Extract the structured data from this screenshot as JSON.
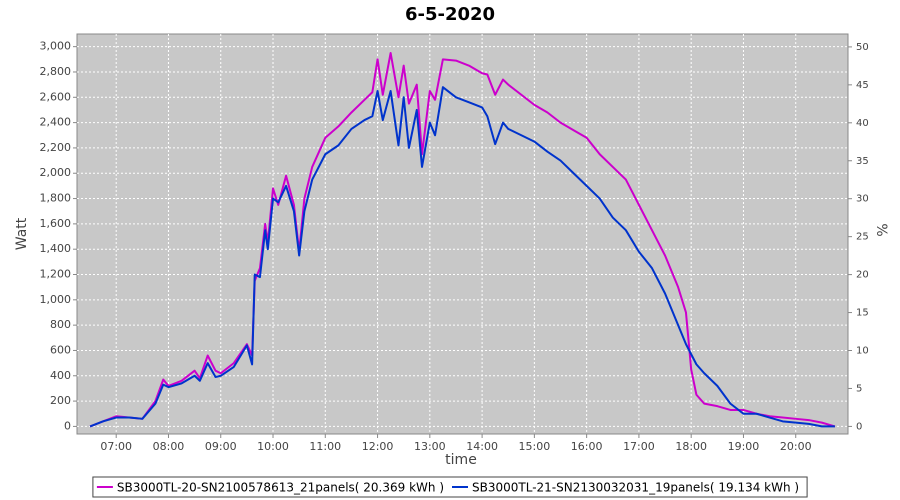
{
  "chart_data": {
    "type": "line",
    "title": "6-5-2020",
    "x_label": "time",
    "y_label": "Watt",
    "y2_label": "%",
    "x": [
      6.5,
      6.75,
      7,
      7.25,
      7.5,
      7.75,
      7.9,
      8,
      8.25,
      8.5,
      8.6,
      8.75,
      8.9,
      9,
      9.25,
      9.5,
      9.6,
      9.65,
      9.75,
      9.85,
      9.9,
      10,
      10.1,
      10.25,
      10.4,
      10.5,
      10.6,
      10.75,
      11,
      11.25,
      11.5,
      11.75,
      11.9,
      12,
      12.1,
      12.25,
      12.4,
      12.5,
      12.6,
      12.75,
      12.85,
      13,
      13.1,
      13.25,
      13.5,
      13.75,
      14,
      14.1,
      14.25,
      14.4,
      14.5,
      14.75,
      15,
      15.25,
      15.5,
      15.75,
      16,
      16.25,
      16.5,
      16.75,
      17,
      17.25,
      17.5,
      17.75,
      17.9,
      18,
      18.1,
      18.25,
      18.5,
      18.75,
      19,
      19.25,
      19.5,
      19.75,
      20,
      20.25,
      20.5,
      20.75
    ],
    "series": [
      {
        "name": "SB3000TL-20-SN2100578613_21panels( 20.369 kWh )",
        "color": "#cc00cc",
        "values": [
          0,
          40,
          80,
          70,
          60,
          200,
          370,
          320,
          360,
          440,
          380,
          560,
          440,
          420,
          500,
          650,
          560,
          1150,
          1250,
          1600,
          1450,
          1880,
          1750,
          1980,
          1750,
          1380,
          1800,
          2050,
          2280,
          2370,
          2480,
          2580,
          2640,
          2900,
          2620,
          2950,
          2600,
          2850,
          2550,
          2700,
          2150,
          2650,
          2580,
          2900,
          2890,
          2850,
          2790,
          2780,
          2620,
          2740,
          2700,
          2620,
          2540,
          2480,
          2400,
          2340,
          2280,
          2150,
          2050,
          1950,
          1750,
          1550,
          1350,
          1100,
          900,
          450,
          250,
          180,
          160,
          130,
          130,
          100,
          80,
          70,
          60,
          50,
          30,
          0
        ]
      },
      {
        "name": "SB3000TL-21-SN2130032031_19panels( 19.134 kWh )",
        "color": "#0033cc",
        "values": [
          0,
          40,
          70,
          70,
          60,
          180,
          330,
          310,
          340,
          400,
          360,
          500,
          390,
          400,
          470,
          640,
          490,
          1200,
          1180,
          1550,
          1400,
          1800,
          1770,
          1900,
          1700,
          1350,
          1700,
          1950,
          2150,
          2220,
          2350,
          2420,
          2450,
          2650,
          2420,
          2650,
          2220,
          2600,
          2200,
          2500,
          2050,
          2400,
          2300,
          2680,
          2600,
          2560,
          2520,
          2450,
          2230,
          2400,
          2350,
          2300,
          2250,
          2170,
          2100,
          2000,
          1900,
          1800,
          1650,
          1550,
          1380,
          1250,
          1050,
          800,
          650,
          570,
          490,
          420,
          320,
          180,
          100,
          100,
          70,
          40,
          30,
          20,
          0,
          0
        ]
      }
    ],
    "xlim": [
      6.25,
      21
    ],
    "xticks": [
      {
        "value": 7,
        "label": "07:00"
      },
      {
        "value": 8,
        "label": "08:00"
      },
      {
        "value": 9,
        "label": "09:00"
      },
      {
        "value": 10,
        "label": "10:00"
      },
      {
        "value": 11,
        "label": "11:00"
      },
      {
        "value": 12,
        "label": "12:00"
      },
      {
        "value": 13,
        "label": "13:00"
      },
      {
        "value": 14,
        "label": "14:00"
      },
      {
        "value": 15,
        "label": "15:00"
      },
      {
        "value": 16,
        "label": "16:00"
      },
      {
        "value": 17,
        "label": "17:00"
      },
      {
        "value": 18,
        "label": "18:00"
      },
      {
        "value": 19,
        "label": "19:00"
      },
      {
        "value": 20,
        "label": "20:00"
      }
    ],
    "ylim": [
      -60,
      3100
    ],
    "yticks": [
      0,
      200,
      400,
      600,
      800,
      {
        "value": 1000,
        "label": "1,000"
      },
      {
        "value": 1200,
        "label": "1,200"
      },
      {
        "value": 1400,
        "label": "1,400"
      },
      {
        "value": 1600,
        "label": "1,600"
      },
      {
        "value": 1800,
        "label": "1,800"
      },
      {
        "value": 2000,
        "label": "2,000"
      },
      {
        "value": 2200,
        "label": "2,200"
      },
      {
        "value": 2400,
        "label": "2,400"
      },
      {
        "value": 2600,
        "label": "2,600"
      },
      {
        "value": 2800,
        "label": "2,800"
      },
      {
        "value": 3000,
        "label": "3,000"
      }
    ],
    "y2lim": [
      -1,
      51.7
    ],
    "y2ticks": [
      0,
      5,
      10,
      15,
      20,
      25,
      30,
      35,
      40,
      45,
      50
    ],
    "grid": true,
    "legend": "bottom"
  }
}
